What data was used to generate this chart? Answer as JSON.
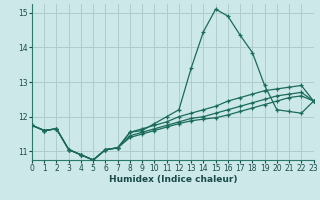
{
  "title": "",
  "xlabel": "Humidex (Indice chaleur)",
  "background_color": "#cce8e8",
  "grid_color": "#b0cccc",
  "line_color": "#1a6b5a",
  "xlim": [
    0,
    23
  ],
  "ylim": [
    10.75,
    15.25
  ],
  "yticks": [
    11,
    12,
    13,
    14,
    15
  ],
  "xticks": [
    0,
    1,
    2,
    3,
    4,
    5,
    6,
    7,
    8,
    9,
    10,
    11,
    12,
    13,
    14,
    15,
    16,
    17,
    18,
    19,
    20,
    21,
    22,
    23
  ],
  "series": [
    {
      "x": [
        0,
        1,
        2,
        3,
        4,
        5,
        6,
        7,
        8,
        9,
        10,
        11,
        12,
        13,
        14,
        15,
        16,
        17,
        18,
        19,
        20,
        21,
        22,
        23
      ],
      "y": [
        11.75,
        11.6,
        11.65,
        11.05,
        10.9,
        10.75,
        11.05,
        11.1,
        11.55,
        11.6,
        11.8,
        12.0,
        12.2,
        13.4,
        14.45,
        15.1,
        14.9,
        14.35,
        13.85,
        12.9,
        12.2,
        12.15,
        12.1,
        12.45
      ]
    },
    {
      "x": [
        0,
        1,
        2,
        3,
        4,
        5,
        6,
        7,
        8,
        9,
        10,
        11,
        12,
        13,
        14,
        15,
        16,
        17,
        18,
        19,
        20,
        21,
        22,
        23
      ],
      "y": [
        11.75,
        11.6,
        11.65,
        11.05,
        10.9,
        10.75,
        11.05,
        11.1,
        11.55,
        11.65,
        11.75,
        11.85,
        12.0,
        12.1,
        12.2,
        12.3,
        12.45,
        12.55,
        12.65,
        12.75,
        12.8,
        12.85,
        12.9,
        12.45
      ]
    },
    {
      "x": [
        0,
        1,
        2,
        3,
        4,
        5,
        6,
        7,
        8,
        9,
        10,
        11,
        12,
        13,
        14,
        15,
        16,
        17,
        18,
        19,
        20,
        21,
        22,
        23
      ],
      "y": [
        11.75,
        11.6,
        11.65,
        11.05,
        10.9,
        10.75,
        11.05,
        11.1,
        11.45,
        11.55,
        11.65,
        11.75,
        11.85,
        11.95,
        12.0,
        12.1,
        12.2,
        12.3,
        12.4,
        12.5,
        12.6,
        12.65,
        12.7,
        12.45
      ]
    },
    {
      "x": [
        0,
        1,
        2,
        3,
        4,
        5,
        6,
        7,
        8,
        9,
        10,
        11,
        12,
        13,
        14,
        15,
        16,
        17,
        18,
        19,
        20,
        21,
        22,
        23
      ],
      "y": [
        11.75,
        11.6,
        11.65,
        11.05,
        10.9,
        10.75,
        11.05,
        11.1,
        11.4,
        11.5,
        11.6,
        11.7,
        11.8,
        11.88,
        11.93,
        11.97,
        12.05,
        12.15,
        12.25,
        12.35,
        12.45,
        12.55,
        12.6,
        12.45
      ]
    }
  ]
}
